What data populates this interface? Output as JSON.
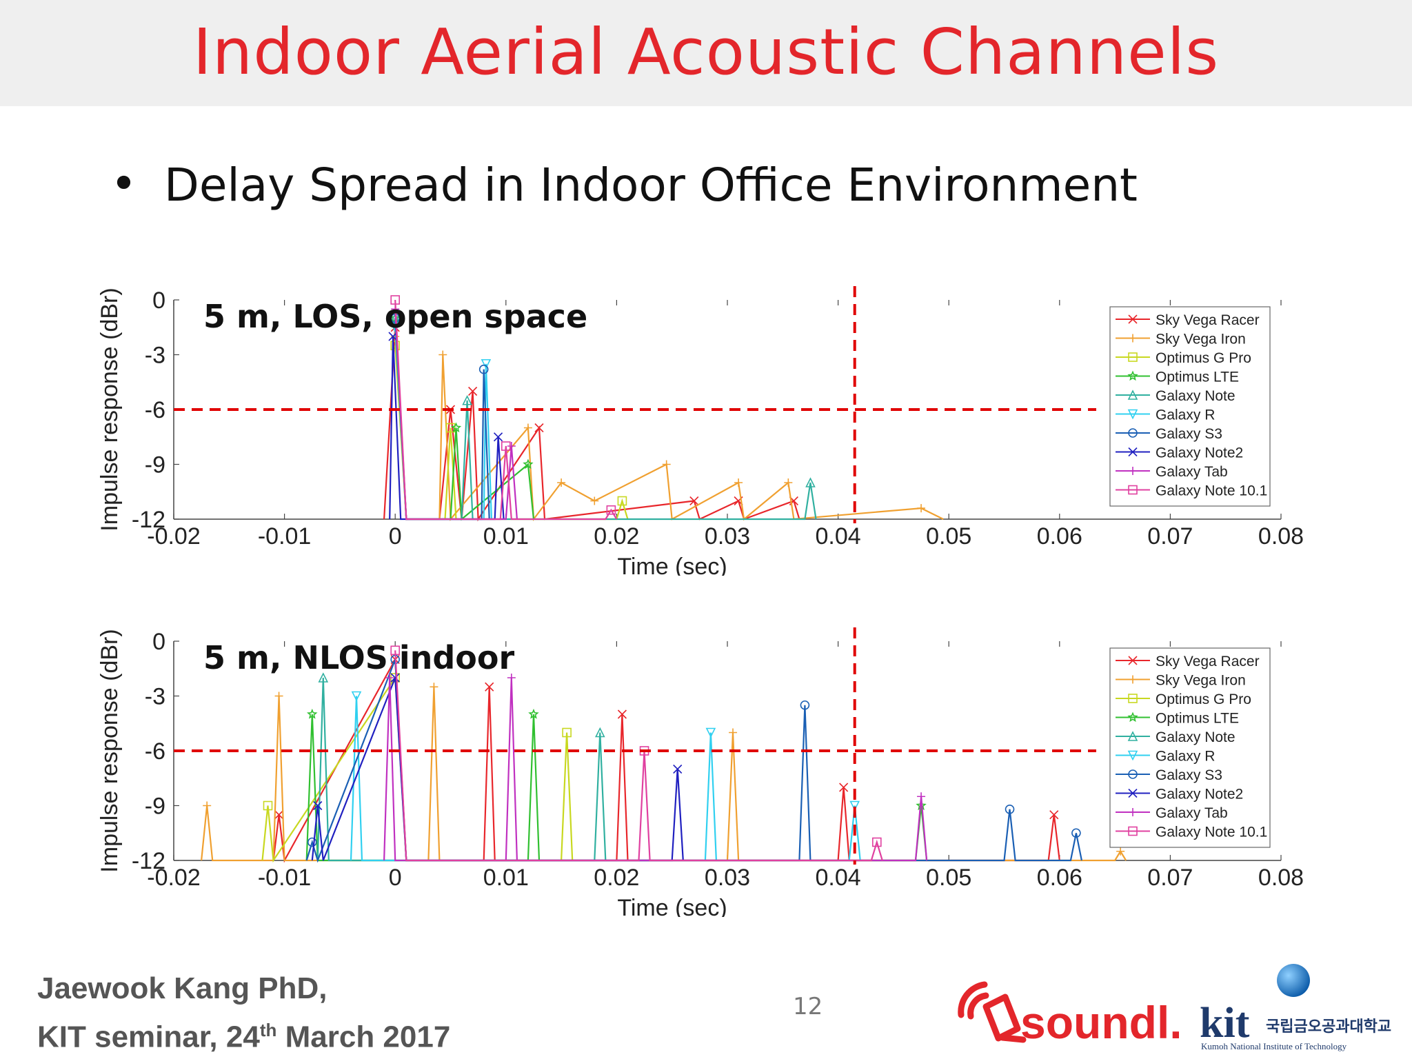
{
  "slide": {
    "title": "Indoor Aerial Acoustic Channels",
    "bullet_symbol": "•",
    "bullet": "Delay Spread in Indoor Office Environment",
    "author_line1": "Jaewook Kang PhD,",
    "author_line2_pre": "KIT seminar, 24",
    "author_line2_sup": "th",
    "author_line2_post": " March 2017",
    "page_number": "12",
    "logo_soundly": "soundl.ly",
    "logo_kit": "kit",
    "logo_kit_korean": "국립금오공과대학교",
    "logo_kit_english": "Kumoh National Institute of Technology",
    "colors": {
      "title": "#e3262b",
      "threshold": "#e00000"
    }
  },
  "chart_data": [
    {
      "type": "line",
      "annotation": "5 m, LOS, open space",
      "xlabel": "Time (sec)",
      "ylabel": "Impulse response (dBr)",
      "xlim": [
        -0.02,
        0.08
      ],
      "ylim": [
        -12,
        0
      ],
      "xticks": [
        "-0.02",
        "-0.01",
        "0",
        "0.01",
        "0.02",
        "0.03",
        "0.04",
        "0.05",
        "0.06",
        "0.07",
        "0.08"
      ],
      "yticks": [
        "0",
        "-3",
        "-6",
        "-9",
        "-12"
      ],
      "threshold_db": -6,
      "delay_marker_sec": 0.0415,
      "legend_position": "top-right",
      "series": [
        {
          "name": "Sky Vega Racer",
          "color": "#e8262b",
          "marker": "x",
          "points": [
            [
              -0.001,
              -12
            ],
            [
              0,
              -1.5
            ],
            [
              0.001,
              -12
            ],
            [
              0.004,
              -12
            ],
            [
              0.005,
              -6
            ],
            [
              0.006,
              -12
            ],
            [
              0.007,
              -5
            ],
            [
              0.0075,
              -12
            ],
            [
              0.013,
              -7
            ],
            [
              0.0135,
              -12
            ],
            [
              0.027,
              -11
            ],
            [
              0.0275,
              -12
            ],
            [
              0.031,
              -11
            ],
            [
              0.0315,
              -12
            ],
            [
              0.036,
              -11
            ],
            [
              0.0365,
              -12
            ]
          ]
        },
        {
          "name": "Sky Vega Iron",
          "color": "#f0a030",
          "marker": "+",
          "points": [
            [
              0,
              -2
            ],
            [
              0.001,
              -12
            ],
            [
              0.004,
              -12
            ],
            [
              0.0043,
              -3
            ],
            [
              0.005,
              -12
            ],
            [
              0.012,
              -7
            ],
            [
              0.0125,
              -12
            ],
            [
              0.015,
              -10
            ],
            [
              0.018,
              -11
            ],
            [
              0.0245,
              -9
            ],
            [
              0.025,
              -12
            ],
            [
              0.031,
              -10
            ],
            [
              0.0315,
              -12
            ],
            [
              0.0355,
              -10
            ],
            [
              0.036,
              -12
            ],
            [
              0.0475,
              -11.4
            ],
            [
              0.0495,
              -12
            ]
          ]
        },
        {
          "name": "Optimus G Pro",
          "color": "#c8d820",
          "marker": "square",
          "points": [
            [
              0,
              -2.5
            ],
            [
              0.001,
              -12
            ],
            [
              0.0045,
              -12
            ],
            [
              0.005,
              -7
            ],
            [
              0.0055,
              -12
            ],
            [
              0.02,
              -12
            ],
            [
              0.0205,
              -11
            ],
            [
              0.021,
              -12
            ]
          ]
        },
        {
          "name": "Optimus LTE",
          "color": "#30c030",
          "marker": "star",
          "points": [
            [
              0,
              -1
            ],
            [
              0.001,
              -12
            ],
            [
              0.005,
              -12
            ],
            [
              0.0055,
              -7
            ],
            [
              0.006,
              -12
            ],
            [
              0.012,
              -9
            ],
            [
              0.0125,
              -12
            ]
          ]
        },
        {
          "name": "Galaxy Note",
          "color": "#30b0a0",
          "marker": "triangle",
          "points": [
            [
              0,
              -1
            ],
            [
              0.001,
              -12
            ],
            [
              0.006,
              -12
            ],
            [
              0.0065,
              -5.5
            ],
            [
              0.007,
              -12
            ],
            [
              0.037,
              -12
            ],
            [
              0.0375,
              -10
            ],
            [
              0.038,
              -12
            ]
          ]
        },
        {
          "name": "Galaxy R",
          "color": "#30d0f0",
          "marker": "triangle-down",
          "points": [
            [
              0,
              -1.5
            ],
            [
              0.001,
              -12
            ],
            [
              0.008,
              -12
            ],
            [
              0.0082,
              -3.5
            ],
            [
              0.0087,
              -12
            ]
          ]
        },
        {
          "name": "Galaxy S3",
          "color": "#1a5fb4",
          "marker": "circle",
          "points": [
            [
              0,
              -1
            ],
            [
              0.001,
              -12
            ],
            [
              0.0078,
              -12
            ],
            [
              0.008,
              -3.8
            ],
            [
              0.0085,
              -12
            ]
          ]
        },
        {
          "name": "Galaxy Note2",
          "color": "#2020c0",
          "marker": "x",
          "points": [
            [
              -0.0005,
              -12
            ],
            [
              -0.0002,
              -2
            ],
            [
              0.0005,
              -12
            ],
            [
              0.009,
              -12
            ],
            [
              0.0093,
              -7.5
            ],
            [
              0.0098,
              -12
            ]
          ]
        },
        {
          "name": "Galaxy Tab",
          "color": "#c030c0",
          "marker": "+",
          "points": [
            [
              0,
              -0.5
            ],
            [
              0.001,
              -12
            ],
            [
              0.01,
              -12
            ],
            [
              0.0105,
              -8
            ],
            [
              0.011,
              -12
            ]
          ]
        },
        {
          "name": "Galaxy Note 10.1",
          "color": "#e040a0",
          "marker": "square",
          "points": [
            [
              0,
              0
            ],
            [
              0.001,
              -12
            ],
            [
              0.0095,
              -12
            ],
            [
              0.01,
              -8
            ],
            [
              0.0105,
              -12
            ],
            [
              0.019,
              -12
            ],
            [
              0.0195,
              -11.5
            ],
            [
              0.02,
              -12
            ]
          ]
        }
      ]
    },
    {
      "type": "line",
      "annotation": "5 m, NLOS indoor",
      "xlabel": "Time (sec)",
      "ylabel": "Impulse response (dBr)",
      "xlim": [
        -0.02,
        0.08
      ],
      "ylim": [
        -12,
        0
      ],
      "xticks": [
        "-0.02",
        "-0.01",
        "0",
        "0.01",
        "0.02",
        "0.03",
        "0.04",
        "0.05",
        "0.06",
        "0.07",
        "0.08"
      ],
      "yticks": [
        "0",
        "-3",
        "-6",
        "-9",
        "-12"
      ],
      "threshold_db": -6,
      "delay_marker_sec": 0.0415,
      "legend_position": "top-right",
      "series": [
        {
          "name": "Sky Vega Racer",
          "color": "#e8262b",
          "marker": "x",
          "points": [
            [
              -0.011,
              -12
            ],
            [
              -0.0105,
              -9.5
            ],
            [
              -0.01,
              -12
            ],
            [
              0,
              -1
            ],
            [
              0.001,
              -12
            ],
            [
              0.008,
              -12
            ],
            [
              0.0085,
              -2.5
            ],
            [
              0.009,
              -12
            ],
            [
              0.02,
              -12
            ],
            [
              0.0205,
              -4
            ],
            [
              0.021,
              -12
            ],
            [
              0.04,
              -12
            ],
            [
              0.0405,
              -8
            ],
            [
              0.041,
              -12
            ],
            [
              0.059,
              -12
            ],
            [
              0.0595,
              -9.5
            ],
            [
              0.06,
              -12
            ]
          ]
        },
        {
          "name": "Sky Vega Iron",
          "color": "#f0a030",
          "marker": "+",
          "points": [
            [
              -0.0175,
              -12
            ],
            [
              -0.017,
              -9
            ],
            [
              -0.0165,
              -12
            ],
            [
              -0.011,
              -12
            ],
            [
              -0.0105,
              -3
            ],
            [
              -0.01,
              -12
            ],
            [
              0.003,
              -12
            ],
            [
              0.0035,
              -2.5
            ],
            [
              0.004,
              -12
            ],
            [
              0.03,
              -12
            ],
            [
              0.0305,
              -5
            ],
            [
              0.031,
              -12
            ],
            [
              0.065,
              -12
            ],
            [
              0.0655,
              -11.5
            ],
            [
              0.066,
              -12
            ]
          ]
        },
        {
          "name": "Optimus G Pro",
          "color": "#c8d820",
          "marker": "square",
          "points": [
            [
              -0.012,
              -12
            ],
            [
              -0.0115,
              -9
            ],
            [
              -0.011,
              -12
            ],
            [
              0.0,
              -2
            ],
            [
              0.001,
              -12
            ],
            [
              0.015,
              -12
            ],
            [
              0.0155,
              -5
            ],
            [
              0.016,
              -12
            ]
          ]
        },
        {
          "name": "Optimus LTE",
          "color": "#30c030",
          "marker": "star",
          "points": [
            [
              -0.008,
              -12
            ],
            [
              -0.0075,
              -4
            ],
            [
              -0.007,
              -12
            ],
            [
              0.012,
              -12
            ],
            [
              0.0125,
              -4
            ],
            [
              0.013,
              -12
            ],
            [
              0.047,
              -12
            ],
            [
              0.0475,
              -9
            ],
            [
              0.048,
              -12
            ]
          ]
        },
        {
          "name": "Galaxy Note",
          "color": "#30b0a0",
          "marker": "triangle",
          "points": [
            [
              -0.007,
              -12
            ],
            [
              -0.0065,
              -2
            ],
            [
              -0.006,
              -12
            ],
            [
              0.018,
              -12
            ],
            [
              0.0185,
              -5
            ],
            [
              0.019,
              -12
            ]
          ]
        },
        {
          "name": "Galaxy R",
          "color": "#30d0f0",
          "marker": "triangle-down",
          "points": [
            [
              -0.004,
              -12
            ],
            [
              -0.0035,
              -3
            ],
            [
              -0.003,
              -12
            ],
            [
              0.028,
              -12
            ],
            [
              0.0285,
              -5
            ],
            [
              0.029,
              -12
            ],
            [
              0.041,
              -12
            ],
            [
              0.0415,
              -9
            ],
            [
              0.042,
              -12
            ]
          ]
        },
        {
          "name": "Galaxy S3",
          "color": "#1a5fb4",
          "marker": "circle",
          "points": [
            [
              -0.008,
              -12
            ],
            [
              -0.0075,
              -11
            ],
            [
              -0.007,
              -12
            ],
            [
              0.0,
              -1
            ],
            [
              0.001,
              -12
            ],
            [
              0.0365,
              -12
            ],
            [
              0.037,
              -3.5
            ],
            [
              0.0375,
              -12
            ],
            [
              0.055,
              -12
            ],
            [
              0.0555,
              -9.2
            ],
            [
              0.056,
              -12
            ],
            [
              0.061,
              -12
            ],
            [
              0.0615,
              -10.5
            ],
            [
              0.062,
              -12
            ]
          ]
        },
        {
          "name": "Galaxy Note2",
          "color": "#2020c0",
          "marker": "x",
          "points": [
            [
              -0.0075,
              -12
            ],
            [
              -0.007,
              -9
            ],
            [
              -0.0065,
              -12
            ],
            [
              0.0,
              -2
            ],
            [
              0.001,
              -12
            ],
            [
              0.025,
              -12
            ],
            [
              0.0255,
              -7
            ],
            [
              0.026,
              -12
            ]
          ]
        },
        {
          "name": "Galaxy Tab",
          "color": "#c030c0",
          "marker": "+",
          "points": [
            [
              -0.001,
              -12
            ],
            [
              -0.0005,
              -2
            ],
            [
              0,
              -12
            ],
            [
              0.01,
              -12
            ],
            [
              0.0105,
              -2
            ],
            [
              0.011,
              -12
            ],
            [
              0.047,
              -12
            ],
            [
              0.0475,
              -8.5
            ],
            [
              0.048,
              -12
            ]
          ]
        },
        {
          "name": "Galaxy Note 10.1",
          "color": "#e040a0",
          "marker": "square",
          "points": [
            [
              0,
              -0.5
            ],
            [
              0.001,
              -12
            ],
            [
              0.022,
              -12
            ],
            [
              0.0225,
              -6
            ],
            [
              0.023,
              -12
            ],
            [
              0.043,
              -12
            ],
            [
              0.0435,
              -11
            ],
            [
              0.044,
              -12
            ]
          ]
        }
      ]
    }
  ]
}
